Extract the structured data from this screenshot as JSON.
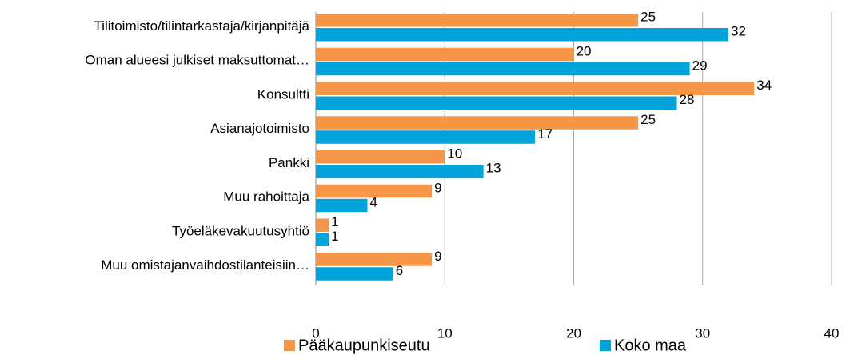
{
  "chart_data": {
    "type": "hbar",
    "categories": [
      "Tilitoimisto/tilintarkastaja/kirjanpitäjä",
      "Oman alueesi julkiset maksuttomat…",
      "Konsultti",
      "Asianajotoimisto",
      "Pankki",
      "Muu rahoittaja",
      "Työeläkevakuutusyhtiö",
      "Muu omistajanvaihdostilanteisiin…"
    ],
    "series": [
      {
        "name": "Pääkaupunkiseutu",
        "color": "#f79646",
        "values": [
          25,
          20,
          34,
          25,
          10,
          9,
          1,
          9
        ]
      },
      {
        "name": "Koko maa",
        "color": "#00a3da",
        "values": [
          32,
          29,
          28,
          17,
          13,
          4,
          1,
          6
        ]
      }
    ],
    "xlim": [
      0,
      40
    ],
    "xticks": [
      0,
      10,
      20,
      30,
      40
    ],
    "grid": true,
    "legend": "bottom"
  }
}
